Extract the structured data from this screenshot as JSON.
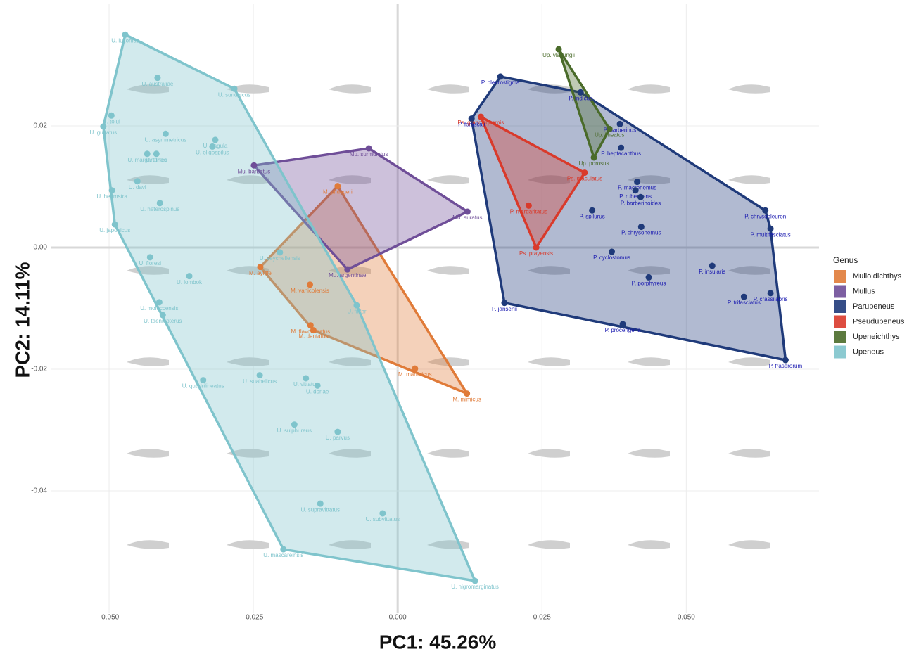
{
  "chart_data": {
    "type": "scatter",
    "x_label": "PC1: 45.26%",
    "y_label": "PC2: 14.11%",
    "legend_title": "Genus",
    "xlim": [
      -0.06,
      0.073
    ],
    "ylim": [
      -0.06,
      0.04
    ],
    "xticks": [
      {
        "value": -0.05,
        "label": "-0.050"
      },
      {
        "value": -0.025,
        "label": "-0.025"
      },
      {
        "value": 0,
        "label": "0.000"
      },
      {
        "value": 0.025,
        "label": "0.025"
      },
      {
        "value": 0.05,
        "label": "0.050"
      }
    ],
    "yticks": [
      -0.04,
      -0.02,
      {
        "value": 0,
        "label": "0.00"
      },
      0.02
    ],
    "grid": true,
    "legend": "right",
    "series": [
      {
        "name": "Mulloidichthys",
        "color": "#e07b39",
        "labels": [
          "M. pfluegeri",
          "M. ayliffe",
          "M. vanicolensis",
          "M. flavolineatus",
          "M. dentatus",
          "M. martinicus",
          "M. mimicus"
        ],
        "x": [
          -0.0104,
          -0.0238,
          -0.0152,
          -0.0151,
          -0.0146,
          0.003,
          0.012
        ],
        "y": [
          0.0101,
          -0.0032,
          -0.0061,
          -0.0128,
          -0.0136,
          -0.0199,
          -0.024
        ]
      },
      {
        "name": "Mullus",
        "color": "#6f4e98",
        "labels": [
          "Mu. barbatus",
          "Mu. surmuletus",
          "Mu. auratus",
          "Mu. argentinae"
        ],
        "x": [
          -0.0249,
          -0.005,
          0.0121,
          -0.0087
        ],
        "y": [
          0.0135,
          0.0163,
          0.0059,
          -0.0036
        ]
      },
      {
        "name": "Parupeneus",
        "color": "#1f3a7a",
        "labels": [
          "P. pleurostigma",
          "P. forsskali",
          "P. indicus",
          "P. barberinus",
          "P. heptacanthus",
          "P. macronemus",
          "P. rubescens",
          "P. barberinoides",
          "P. spilurus",
          "P. chrysopleuron",
          "P. multifasciatus",
          "P. chrysonemus",
          "P. cyclostomus",
          "P. porphyreus",
          "P. insularis",
          "P. crassilabris",
          "P. trifasciatus",
          "P. jansenii",
          "P. procerigena",
          "P. fraserorum"
        ],
        "x": [
          0.0178,
          0.0128,
          0.0317,
          0.0385,
          0.0387,
          0.0415,
          0.0412,
          0.0421,
          0.0337,
          0.0637,
          0.0646,
          0.0422,
          0.0371,
          0.0435,
          0.0545,
          0.0646,
          0.06,
          0.0185,
          0.039,
          0.0672
        ],
        "y": [
          0.0281,
          0.0212,
          0.0255,
          0.0203,
          0.0164,
          0.0108,
          0.0094,
          0.0083,
          0.0061,
          0.0061,
          0.0031,
          0.0034,
          -0.0007,
          -0.0049,
          -0.003,
          -0.0075,
          -0.0081,
          -0.0091,
          -0.0126,
          -0.0185
        ]
      },
      {
        "name": "Pseudupeneus",
        "color": "#d93a2b",
        "labels": [
          "Ps. grandisquamis",
          "Ps. maculatus",
          "P. margaritatus",
          "Ps. prayensis"
        ],
        "x": [
          0.0144,
          0.0324,
          0.0227,
          0.024
        ],
        "y": [
          0.0215,
          0.0123,
          0.0069,
          0.0
        ]
      },
      {
        "name": "Upeneichthys",
        "color": "#4a6b2a",
        "labels": [
          "Up. vlamingii",
          "Up. lineatus",
          "Up. porosus"
        ],
        "x": [
          0.0279,
          0.0367,
          0.034
        ],
        "y": [
          0.0326,
          0.0195,
          0.0148
        ]
      },
      {
        "name": "Upeneus",
        "color": "#7fc4cc",
        "labels": [
          "U. luzonius",
          "U. australiae",
          "U. sundaicus",
          "U. tolui",
          "U. guttatus",
          "U. asymmetricus",
          "U. tragula",
          "U. oligospilus",
          "U. torres",
          "U. margarethae",
          "U. davi",
          "U. heemstra",
          "U. heterospinus",
          "U. japonicus",
          "U. seychellensis",
          "U. floresi",
          "U. lombok",
          "U. moluccensis",
          "U. filifer",
          "U. taeniopterus",
          "U. quadrilineatus",
          "U. suahelicus",
          "U. vittatus",
          "U. doriae",
          "U. sulphureus",
          "U. parvus",
          "U. supravittatus",
          "U. subvittatus",
          "U. mascareinsis",
          "U. nigromarginatus"
        ],
        "x": [
          -0.0472,
          -0.0416,
          -0.0283,
          -0.0496,
          -0.051,
          -0.0402,
          -0.0316,
          -0.0321,
          -0.0418,
          -0.0434,
          -0.0451,
          -0.0495,
          -0.0412,
          -0.049,
          -0.0204,
          -0.0429,
          -0.0361,
          -0.0413,
          -0.0071,
          -0.0407,
          -0.0337,
          -0.0239,
          -0.0159,
          -0.0139,
          -0.0179,
          -0.0104,
          -0.0134,
          -0.0026,
          -0.0198,
          0.0134
        ],
        "y": [
          0.035,
          0.0279,
          0.0261,
          0.0217,
          0.0199,
          0.0187,
          0.0177,
          0.0166,
          0.0154,
          0.0154,
          0.0109,
          0.0094,
          0.0073,
          0.0038,
          -0.0008,
          -0.0016,
          -0.0047,
          -0.009,
          -0.0095,
          -0.0111,
          -0.0218,
          -0.021,
          -0.0215,
          -0.0227,
          -0.0291,
          -0.0303,
          -0.0421,
          -0.0437,
          -0.0496,
          -0.0548
        ]
      }
    ]
  }
}
